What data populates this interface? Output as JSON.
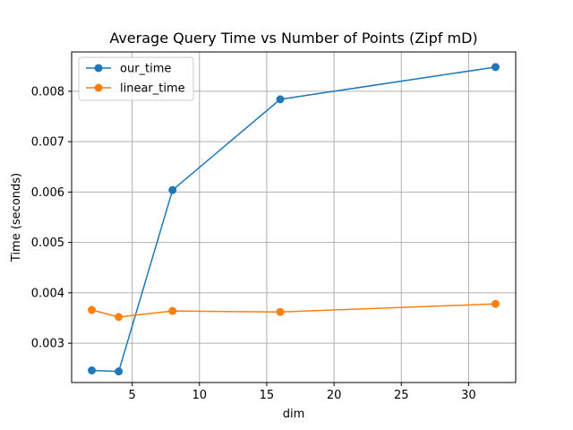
{
  "chart_data": {
    "type": "line",
    "title": "Average Query Time vs Number of Points (Zipf mD)",
    "xlabel": "dim",
    "ylabel": "Time (seconds)",
    "x": [
      2,
      4,
      8,
      16,
      32
    ],
    "xlim": [
      0.5,
      33.5
    ],
    "ylim": [
      0.00222,
      0.00878
    ],
    "xticks": [
      5,
      10,
      15,
      20,
      25,
      30
    ],
    "xtick_labels": [
      "5",
      "10",
      "15",
      "20",
      "25",
      "30"
    ],
    "yticks": [
      0.003,
      0.004,
      0.005,
      0.006,
      0.007,
      0.008
    ],
    "ytick_labels": [
      "0.003",
      "0.004",
      "0.005",
      "0.006",
      "0.007",
      "0.008"
    ],
    "grid": true,
    "legend_position": "upper left",
    "series": [
      {
        "name": "our_time",
        "color": "#1f77b4",
        "marker": "circle",
        "values": [
          0.00246,
          0.00244,
          0.00604,
          0.00784,
          0.00848
        ]
      },
      {
        "name": "linear_time",
        "color": "#ff7f0e",
        "marker": "circle",
        "values": [
          0.00366,
          0.00352,
          0.00364,
          0.00362,
          0.00378
        ]
      }
    ]
  }
}
